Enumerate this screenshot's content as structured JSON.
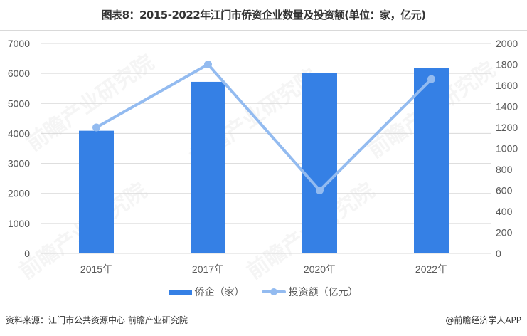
{
  "title": "图表8：2015-2022年江门市侨资企业数量及投资额(单位：家，亿元)",
  "chart_data": {
    "type": "bar+line",
    "title": "图表8：2015-2022年江门市侨资企业数量及投资额(单位：家，亿元)",
    "categories": [
      "2015年",
      "2017年",
      "2020年",
      "2022年"
    ],
    "series": [
      {
        "name": "侨企（家）",
        "type": "bar",
        "axis": "left",
        "color": "#3580e5",
        "values": [
          4090,
          5720,
          6010,
          6190
        ]
      },
      {
        "name": "投资额（亿元）",
        "type": "line",
        "axis": "right",
        "color": "#93bbf0",
        "values": [
          1200,
          1800,
          600,
          1660
        ]
      }
    ],
    "left_axis": {
      "ylim": [
        0,
        7000
      ],
      "ticks": [
        "0",
        "1000",
        "2000",
        "3000",
        "4000",
        "5000",
        "6000",
        "7000"
      ]
    },
    "right_axis": {
      "ylim": [
        0,
        2000
      ],
      "ticks": [
        "0",
        "200",
        "400",
        "600",
        "800",
        "1000",
        "1200",
        "1400",
        "1600",
        "1800",
        "2000"
      ]
    },
    "grid": true,
    "legend_position": "bottom"
  },
  "legend": {
    "bar_label": "侨企（家）",
    "line_label": "投资额（亿元）"
  },
  "footer": {
    "source": "资料来源：江门市公共资源中心 前瞻产业研究院",
    "credit": "@前瞻经济学人APP"
  },
  "watermark": "前瞻产业研究院"
}
